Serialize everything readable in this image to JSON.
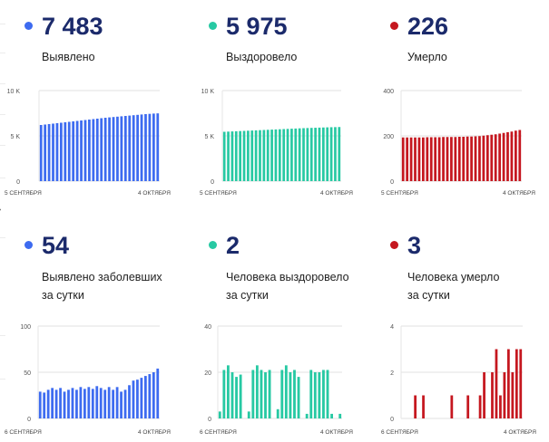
{
  "panels": [
    {
      "key": "cases",
      "color": "#3d6bf0",
      "value": "7 483",
      "label_lines": [
        "Выявлено"
      ],
      "chart_data": {
        "type": "bar",
        "ylim": [
          0,
          10000
        ],
        "yticks": [
          0,
          5000,
          10000
        ],
        "ytick_labels": [
          "0",
          "5 K",
          "10 K"
        ],
        "x_start_label": "5 СЕНТЯБРЯ",
        "x_end_label": "4 ОКТЯБРЯ",
        "values": [
          6200,
          6250,
          6300,
          6350,
          6400,
          6450,
          6500,
          6550,
          6600,
          6650,
          6700,
          6750,
          6800,
          6850,
          6900,
          6950,
          7000,
          7040,
          7080,
          7120,
          7160,
          7200,
          7240,
          7280,
          7320,
          7360,
          7400,
          7430,
          7460,
          7483
        ]
      }
    },
    {
      "key": "recovered",
      "color": "#27c9a3",
      "value": "5 975",
      "label_lines": [
        "Выздоровело"
      ],
      "chart_data": {
        "type": "bar",
        "ylim": [
          0,
          10000
        ],
        "yticks": [
          0,
          5000,
          10000
        ],
        "ytick_labels": [
          "0",
          "5 K",
          "10 K"
        ],
        "x_start_label": "5 СЕНТЯБРЯ",
        "x_end_label": "4 ОКТЯБРЯ",
        "values": [
          5450,
          5470,
          5490,
          5510,
          5530,
          5550,
          5570,
          5590,
          5610,
          5630,
          5650,
          5670,
          5690,
          5710,
          5730,
          5750,
          5770,
          5790,
          5810,
          5830,
          5850,
          5865,
          5880,
          5895,
          5910,
          5925,
          5940,
          5955,
          5965,
          5975
        ]
      }
    },
    {
      "key": "deaths",
      "color": "#c5171f",
      "value": "226",
      "label_lines": [
        "Умерло"
      ],
      "chart_data": {
        "type": "bar",
        "ylim": [
          0,
          400
        ],
        "yticks": [
          0,
          200,
          400
        ],
        "ytick_labels": [
          "0",
          "200",
          "400"
        ],
        "x_start_label": "5 СЕНТЯБРЯ",
        "x_end_label": "4 ОКТЯБРЯ",
        "values": [
          193,
          193,
          193,
          193,
          193,
          193,
          194,
          194,
          194,
          194,
          195,
          195,
          195,
          195,
          196,
          196,
          197,
          197,
          198,
          199,
          201,
          203,
          205,
          207,
          210,
          213,
          216,
          219,
          223,
          226
        ]
      }
    },
    {
      "key": "daily_cases",
      "color": "#3d6bf0",
      "value": "54",
      "label_lines": [
        "Выявлено заболевших",
        "за сутки"
      ],
      "chart_data": {
        "type": "bar",
        "ylim": [
          0,
          100
        ],
        "yticks": [
          0,
          50,
          100
        ],
        "ytick_labels": [
          "0",
          "50",
          "100"
        ],
        "x_start_label": "6 СЕНТЯБРЯ",
        "x_end_label": "4 ОКТЯБРЯ",
        "values": [
          29,
          28,
          31,
          33,
          31,
          33,
          29,
          31,
          33,
          31,
          34,
          32,
          34,
          32,
          35,
          33,
          31,
          34,
          31,
          34,
          29,
          31,
          36,
          41,
          42,
          44,
          46,
          48,
          50,
          54
        ]
      }
    },
    {
      "key": "daily_recovered",
      "color": "#27c9a3",
      "value": "2",
      "label_lines": [
        "Человека выздоровело",
        "за сутки"
      ],
      "chart_data": {
        "type": "bar",
        "ylim": [
          0,
          40
        ],
        "yticks": [
          0,
          20,
          40
        ],
        "ytick_labels": [
          "0",
          "20",
          "40"
        ],
        "x_start_label": "6 СЕНТЯБРЯ",
        "x_end_label": "4 ОКТЯБРЯ",
        "values": [
          3,
          21,
          23,
          20,
          18,
          19,
          0,
          3,
          21,
          23,
          21,
          20,
          21,
          0,
          4,
          21,
          23,
          20,
          21,
          18,
          0,
          2,
          21,
          20,
          20,
          21,
          21,
          2,
          0,
          2
        ]
      }
    },
    {
      "key": "daily_deaths",
      "color": "#c5171f",
      "value": "3",
      "label_lines": [
        "Человека умерло",
        "за сутки"
      ],
      "chart_data": {
        "type": "bar",
        "ylim": [
          0,
          4
        ],
        "yticks": [
          0,
          2,
          4
        ],
        "ytick_labels": [
          "0",
          "2",
          "4"
        ],
        "x_start_label": "6 СЕНТЯБРЯ",
        "x_end_label": "4 ОКТЯБРЯ",
        "values": [
          0,
          0,
          0,
          1,
          0,
          1,
          0,
          0,
          0,
          0,
          0,
          0,
          1,
          0,
          0,
          0,
          1,
          0,
          0,
          1,
          2,
          0,
          2,
          3,
          1,
          2,
          3,
          2,
          3,
          3
        ]
      }
    }
  ]
}
